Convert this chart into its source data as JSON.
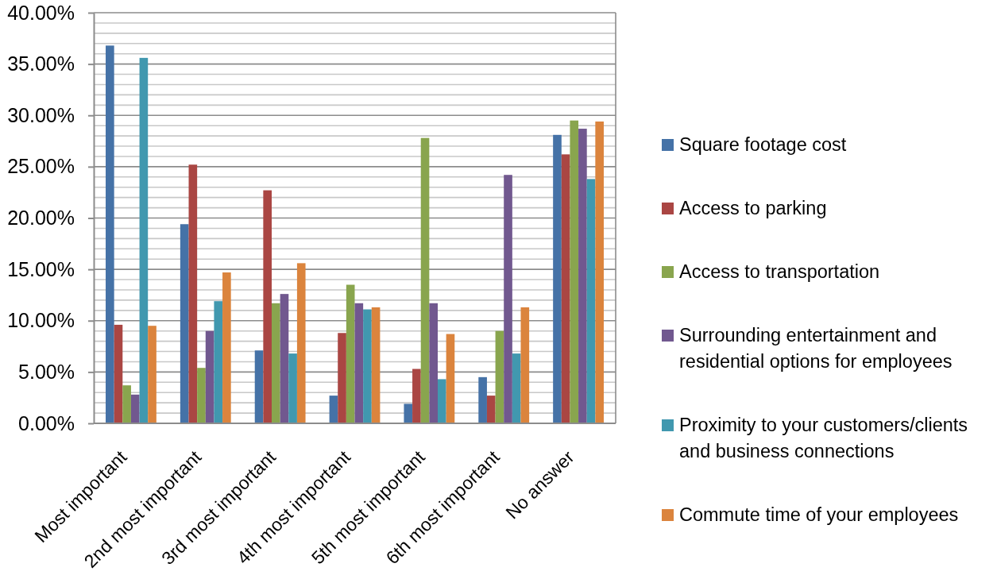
{
  "chart_data": {
    "type": "bar",
    "categories": [
      "Most important",
      "2nd most important",
      "3rd most important",
      "4th most important",
      "5th most important",
      "6th most important",
      "No answer"
    ],
    "series": [
      {
        "name": "Square footage cost",
        "color": "#4572a7",
        "values": [
          36.8,
          19.4,
          7.1,
          2.7,
          1.9,
          4.5,
          28.1
        ]
      },
      {
        "name": "Access to parking",
        "color": "#aa4643",
        "values": [
          9.6,
          25.2,
          22.7,
          8.8,
          5.3,
          2.7,
          26.2
        ]
      },
      {
        "name": "Access to transportation",
        "color": "#89a54e",
        "values": [
          3.7,
          5.4,
          11.7,
          13.5,
          27.8,
          9.0,
          29.5
        ]
      },
      {
        "name": "Surrounding entertainment and residential options for employees",
        "color": "#71588f",
        "values": [
          2.8,
          9.0,
          12.6,
          11.7,
          11.7,
          24.2,
          28.7
        ]
      },
      {
        "name": "Proximity to your customers/clients and business connections",
        "color": "#4198af",
        "values": [
          35.6,
          11.9,
          6.8,
          11.1,
          4.3,
          6.8,
          23.8
        ]
      },
      {
        "name": "Commute time of your employees",
        "color": "#db843d",
        "values": [
          9.5,
          14.7,
          15.6,
          11.3,
          8.7,
          11.3,
          29.4
        ]
      }
    ],
    "ylim": [
      0,
      40
    ],
    "yticks": [
      {
        "value": 0,
        "label": "0.00%"
      },
      {
        "value": 1,
        "label": null
      },
      {
        "value": 2,
        "label": null
      },
      {
        "value": 3,
        "label": null
      },
      {
        "value": 4,
        "label": null
      },
      {
        "value": 5,
        "label": "5.00%"
      },
      {
        "value": 6,
        "label": null
      },
      {
        "value": 7,
        "label": null
      },
      {
        "value": 8,
        "label": null
      },
      {
        "value": 9,
        "label": null
      },
      {
        "value": 10,
        "label": "10.00%"
      },
      {
        "value": 11,
        "label": null
      },
      {
        "value": 12,
        "label": null
      },
      {
        "value": 13,
        "label": null
      },
      {
        "value": 14,
        "label": null
      },
      {
        "value": 15,
        "label": "15.00%"
      },
      {
        "value": 16,
        "label": null
      },
      {
        "value": 17,
        "label": null
      },
      {
        "value": 18,
        "label": null
      },
      {
        "value": 19,
        "label": null
      },
      {
        "value": 20,
        "label": "20.00%"
      },
      {
        "value": 21,
        "label": null
      },
      {
        "value": 22,
        "label": null
      },
      {
        "value": 23,
        "label": null
      },
      {
        "value": 24,
        "label": null
      },
      {
        "value": 25,
        "label": "25.00%"
      },
      {
        "value": 26,
        "label": null
      },
      {
        "value": 27,
        "label": null
      },
      {
        "value": 28,
        "label": null
      },
      {
        "value": 29,
        "label": null
      },
      {
        "value": 30,
        "label": "30.00%"
      },
      {
        "value": 31,
        "label": null
      },
      {
        "value": 32,
        "label": null
      },
      {
        "value": 33,
        "label": null
      },
      {
        "value": 34,
        "label": null
      },
      {
        "value": 35,
        "label": "35.00%"
      },
      {
        "value": 36,
        "label": null
      },
      {
        "value": 37,
        "label": null
      },
      {
        "value": 38,
        "label": null
      },
      {
        "value": 39,
        "label": null
      },
      {
        "value": 40,
        "label": "40.00%"
      }
    ],
    "grid": true,
    "legend": "right"
  }
}
